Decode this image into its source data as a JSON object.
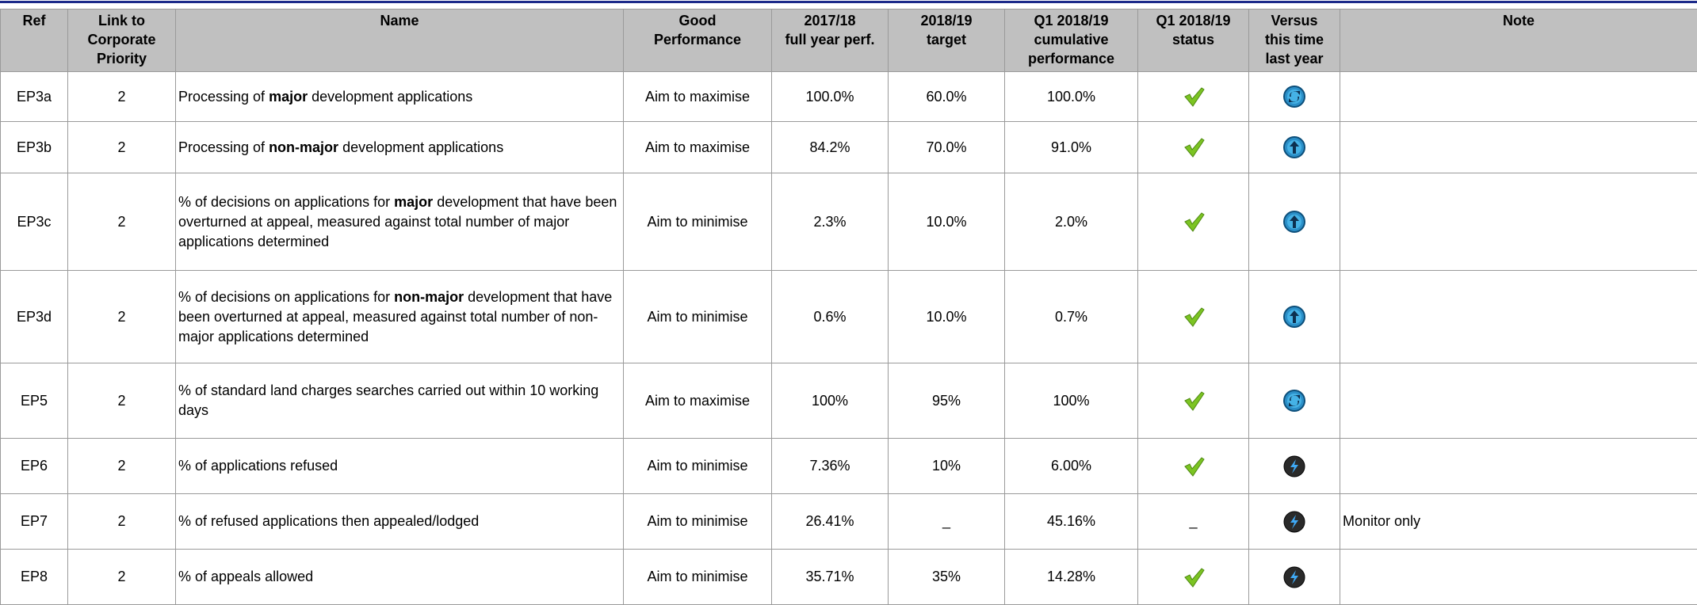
{
  "table": {
    "header": [
      [
        "Ref"
      ],
      [
        "Link to",
        "Corporate",
        "Priority"
      ],
      [
        "Name"
      ],
      [
        "Good",
        "Performance"
      ],
      [
        "2017/18",
        "full year perf."
      ],
      [
        "2018/19",
        "target"
      ],
      [
        "Q1 2018/19",
        "cumulative",
        "performance"
      ],
      [
        "Q1 2018/19",
        "status"
      ],
      [
        "Versus",
        "this time",
        "last year"
      ],
      [
        "Note"
      ]
    ],
    "rows": [
      {
        "ref": "EP3a",
        "priority": "2",
        "name": [
          "Processing of ",
          "major",
          " development applications"
        ],
        "good": "Aim to maximise",
        "full_year": "100.0%",
        "target": "60.0%",
        "cumulative": "100.0%"
      },
      {
        "ref": "EP3b",
        "priority": "2",
        "name": [
          "Processing of ",
          "non-major",
          " development applications"
        ],
        "good": "Aim to maximise",
        "full_year": "84.2%",
        "target": "70.0%",
        "cumulative": "91.0%"
      },
      {
        "ref": "EP3c",
        "priority": "2",
        "name": [
          "% of decisions on applications for ",
          "major",
          " development that have been overturned at appeal, measured against total number of major applications determined"
        ],
        "good": "Aim to minimise",
        "full_year": "2.3%",
        "target": "10.0%",
        "cumulative": "2.0%"
      },
      {
        "ref": "EP3d",
        "priority": "2",
        "name": [
          "% of decisions on applications for ",
          "non-major",
          " development that have been overturned at appeal, measured against total number of non-major applications determined"
        ],
        "good": "Aim to minimise",
        "full_year": "0.6%",
        "target": "10.0%",
        "cumulative": "0.7%"
      },
      {
        "ref": "EP5",
        "priority": "2",
        "name": [
          "% of standard land charges searches carried out within 10 working days"
        ],
        "good": "Aim to maximise",
        "full_year": "100%",
        "target": "95%",
        "cumulative": "100%"
      },
      {
        "ref": "EP6",
        "priority": "2",
        "name": [
          "% of applications refused"
        ],
        "good": "Aim to minimise",
        "full_year": "7.36%",
        "target": "10%",
        "cumulative": "6.00%"
      },
      {
        "ref": "EP7",
        "priority": "2",
        "name": [
          "% of refused applications then appealed/lodged"
        ],
        "good": "Aim to minimise",
        "full_year": "26.41%",
        "target": "_",
        "cumulative": "45.16%",
        "status": "_",
        "note": "Monitor only"
      },
      {
        "ref": "EP8",
        "priority": "2",
        "name": [
          "% of appeals allowed"
        ],
        "good": "Aim to minimise",
        "full_year": "35.71%",
        "target": "35%",
        "cumulative": "14.28%"
      }
    ]
  }
}
